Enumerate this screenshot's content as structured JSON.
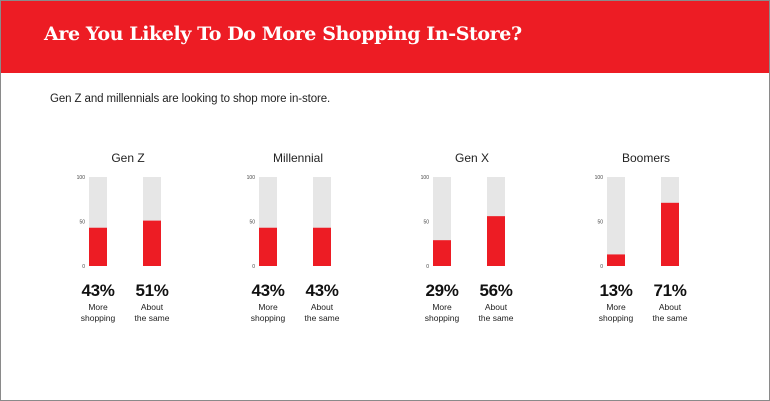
{
  "header": {
    "title": "Are You Likely To Do More Shopping In-Store?"
  },
  "subtitle": "Gen Z and millennials are looking to shop more in-store.",
  "colors": {
    "accent": "#ed1c24",
    "track": "#e6e6e6",
    "bar": "#ed1c24"
  },
  "chart_data": [
    {
      "type": "bar",
      "title": "Gen Z",
      "ylim": [
        0,
        100
      ],
      "yticks": [
        "0",
        "50",
        "100"
      ],
      "categories": [
        "More shopping",
        "About the same"
      ],
      "values": [
        43,
        51
      ],
      "value_labels": [
        "43%",
        "51%"
      ],
      "bar_labels": [
        [
          "More",
          "shopping"
        ],
        [
          "About",
          "the same"
        ]
      ]
    },
    {
      "type": "bar",
      "title": "Millennial",
      "ylim": [
        0,
        100
      ],
      "yticks": [
        "0",
        "50",
        "100"
      ],
      "categories": [
        "More shopping",
        "About the same"
      ],
      "values": [
        43,
        43
      ],
      "value_labels": [
        "43%",
        "43%"
      ],
      "bar_labels": [
        [
          "More",
          "shopping"
        ],
        [
          "About",
          "the same"
        ]
      ]
    },
    {
      "type": "bar",
      "title": "Gen X",
      "ylim": [
        0,
        100
      ],
      "yticks": [
        "0",
        "50",
        "100"
      ],
      "categories": [
        "More shopping",
        "About the same"
      ],
      "values": [
        29,
        56
      ],
      "value_labels": [
        "29%",
        "56%"
      ],
      "bar_labels": [
        [
          "More",
          "shopping"
        ],
        [
          "About",
          "the same"
        ]
      ]
    },
    {
      "type": "bar",
      "title": "Boomers",
      "ylim": [
        0,
        100
      ],
      "yticks": [
        "0",
        "50",
        "100"
      ],
      "categories": [
        "More shopping",
        "About the same"
      ],
      "values": [
        13,
        71
      ],
      "value_labels": [
        "13%",
        "71%"
      ],
      "bar_labels": [
        [
          "More",
          "shopping"
        ],
        [
          "About",
          "the same"
        ]
      ]
    }
  ]
}
